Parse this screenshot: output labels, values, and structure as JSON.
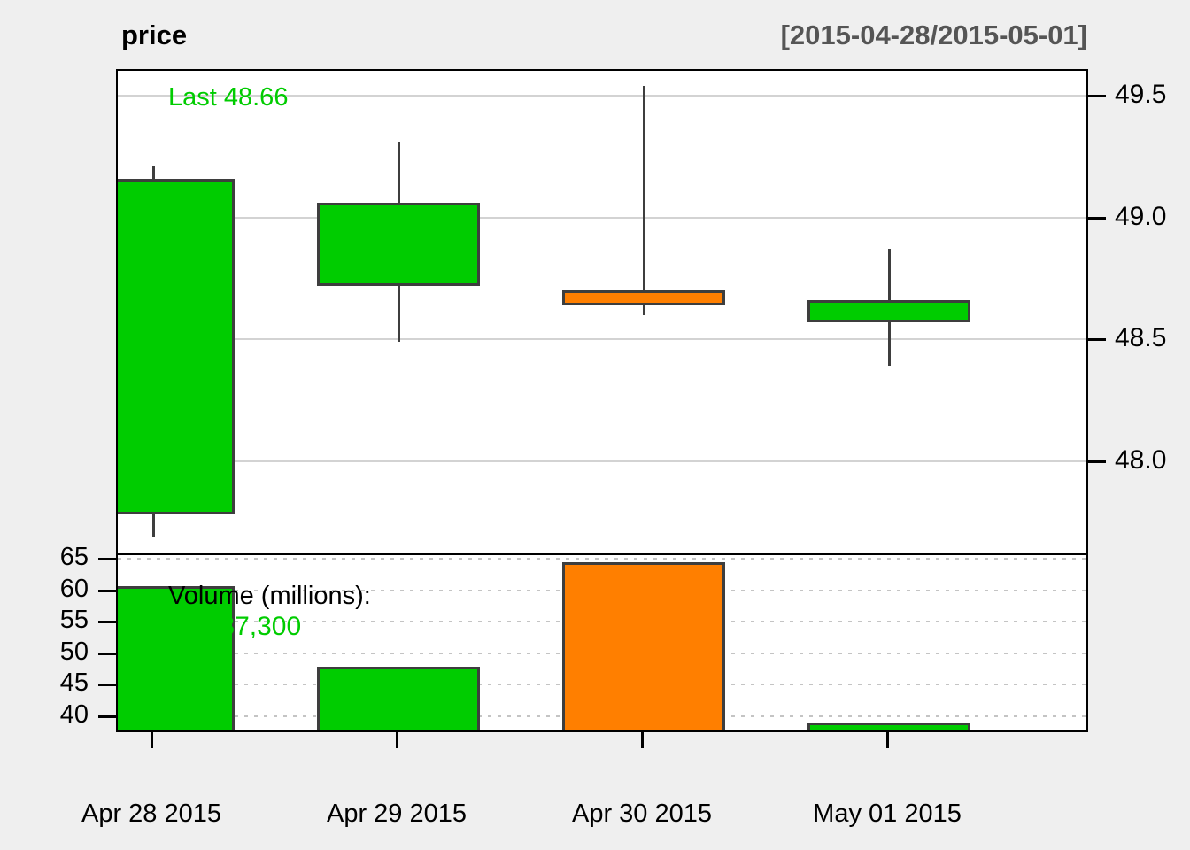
{
  "header": {
    "title": "price",
    "range": "[2015-04-28/2015-05-01]"
  },
  "price_panel": {
    "last_label": "Last 48.66"
  },
  "volume_panel": {
    "label": "Volume (millions):",
    "last_value": "38,987,300"
  },
  "colors": {
    "up": "#00CC00",
    "down": "#FF7F00",
    "candle_border": "#3E3E3E",
    "accent_text_green": "#00CC00",
    "range_text": "#555555",
    "grid_solid": "#D3D3D3",
    "grid_dotted": "#C4C4C4",
    "background": "#EFEFEF"
  },
  "chart_data": {
    "type": "candlestick",
    "title": "price",
    "subtitle": "[2015-04-28/2015-05-01]",
    "last": 48.66,
    "x": [
      "Apr 28 2015",
      "Apr 29 2015",
      "Apr 30 2015",
      "May 01 2015"
    ],
    "ohlc": [
      {
        "date": "Apr 28 2015",
        "open": 47.78,
        "high": 49.21,
        "low": 47.69,
        "close": 49.16,
        "direction": "up",
        "volume_millions": 60.7
      },
      {
        "date": "Apr 29 2015",
        "open": 48.72,
        "high": 49.31,
        "low": 48.49,
        "close": 49.06,
        "direction": "up",
        "volume_millions": 47.8
      },
      {
        "date": "Apr 30 2015",
        "open": 48.7,
        "high": 49.54,
        "low": 48.6,
        "close": 48.64,
        "direction": "down",
        "volume_millions": 64.4
      },
      {
        "date": "May 01 2015",
        "open": 48.57,
        "high": 48.87,
        "low": 48.39,
        "close": 48.66,
        "direction": "up",
        "volume_millions": 39.0
      }
    ],
    "price_axis": {
      "side": "right",
      "ticks": [
        49.5,
        49.0,
        48.5,
        48.0
      ],
      "ylim": [
        47.6,
        49.6
      ],
      "grid": "solid"
    },
    "volume_axis": {
      "side": "left",
      "unit": "millions",
      "ticks": [
        65,
        60,
        55,
        50,
        45,
        40
      ],
      "ylim": [
        37.8,
        65.6
      ],
      "grid": "dotted"
    },
    "legend_position": "none"
  }
}
